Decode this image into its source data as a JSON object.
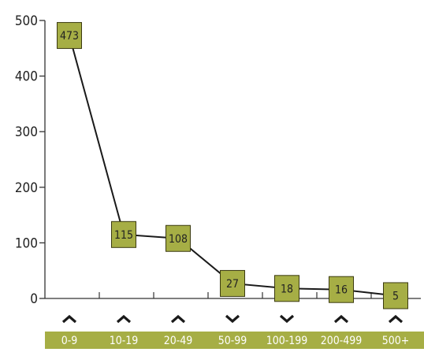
{
  "chart_data": {
    "type": "line",
    "categories": [
      "0-9",
      "10-19",
      "20-49",
      "50-99",
      "100-199",
      "200-499",
      "500+"
    ],
    "values": [
      473,
      115,
      108,
      27,
      18,
      16,
      5
    ],
    "value_labels": [
      "473",
      "115",
      "108",
      "27",
      "18",
      "16",
      "5"
    ],
    "trend": [
      "up",
      "up",
      "up",
      "down",
      "down",
      "up",
      "up"
    ],
    "yticks": [
      0,
      100,
      200,
      300,
      400,
      500
    ],
    "ytick_labels": [
      "0",
      "100",
      "200",
      "300",
      "400",
      "500"
    ],
    "ylim": [
      0,
      500
    ],
    "title": "",
    "xlabel": "",
    "ylabel": "",
    "grid": false,
    "colors": {
      "marker_fill": "#a6ae45",
      "marker_stroke": "#3b3a10",
      "line": "#1a1a1a",
      "category_band": "#a6ae45",
      "category_text": "#ffffff",
      "arrow": "#1a1a1a",
      "axis": "#333333"
    }
  }
}
